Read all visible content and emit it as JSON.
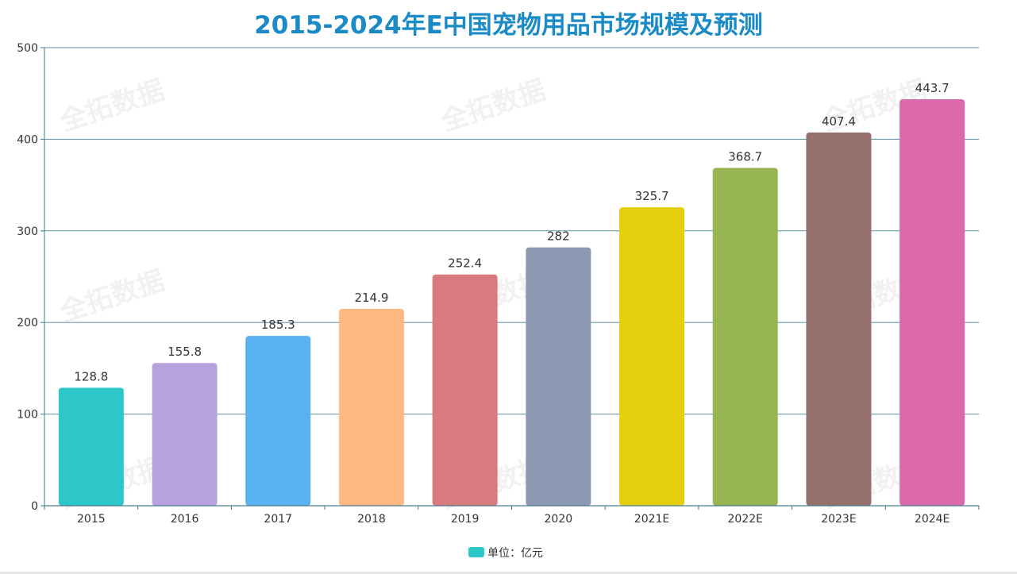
{
  "chart_data": {
    "type": "bar",
    "title": "2015-2024年E中国宠物用品市场规模及预测",
    "categories": [
      "2015",
      "2016",
      "2017",
      "2018",
      "2019",
      "2020",
      "2021E",
      "2022E",
      "2023E",
      "2024E"
    ],
    "values": [
      128.8,
      155.8,
      185.3,
      214.9,
      252.4,
      282,
      325.7,
      368.7,
      407.4,
      443.7
    ],
    "data_labels": [
      "128.8",
      "155.8",
      "185.3",
      "214.9",
      "252.4",
      "282",
      "325.7",
      "368.7",
      "407.4",
      "443.7"
    ],
    "colors": [
      "#2ec7c9",
      "#b6a2de",
      "#5ab1ef",
      "#ffb980",
      "#d87a80",
      "#8d98b3",
      "#e5cf0d",
      "#97b552",
      "#95706d",
      "#dc69aa"
    ],
    "ylim": [
      0,
      500
    ],
    "yticks": [
      "0",
      "100",
      "200",
      "300",
      "400",
      "500"
    ],
    "grid": true,
    "legend": {
      "label": "单位：亿元",
      "color": "#2ec7c9",
      "position": "bottom-center"
    },
    "watermark": "全拓数据"
  }
}
